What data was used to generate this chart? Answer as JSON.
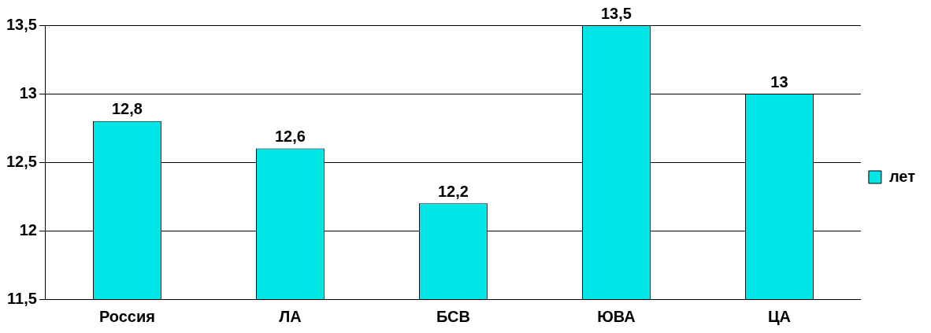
{
  "chart_data": {
    "type": "bar",
    "categories": [
      "Россия",
      "ЛА",
      "БСВ",
      "ЮВА",
      "ЦА"
    ],
    "series": [
      {
        "name": "лет",
        "color": "#00e5e5",
        "values": [
          12.8,
          12.6,
          12.2,
          13.5,
          13
        ],
        "value_labels": [
          "12,8",
          "12,6",
          "12,2",
          "13,5",
          "13"
        ]
      }
    ],
    "ylim": [
      11.5,
      13.5
    ],
    "yticks": [
      {
        "value": 11.5,
        "label": "11,5"
      },
      {
        "value": 12,
        "label": "12"
      },
      {
        "value": 12.5,
        "label": "12,5"
      },
      {
        "value": 13,
        "label": "13"
      },
      {
        "value": 13.5,
        "label": "13,5"
      }
    ],
    "grid": "y",
    "legend": "right"
  }
}
